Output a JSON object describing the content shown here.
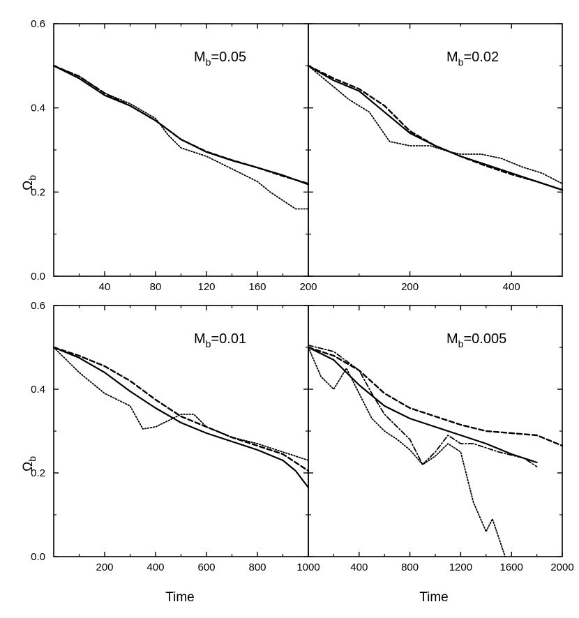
{
  "figure": {
    "xlabel": "Time",
    "ylabel_main": "Ω",
    "ylabel_sub": "b"
  },
  "colors": {
    "ink": "#000000",
    "background": "#ffffff"
  },
  "chart_data": [
    {
      "type": "line",
      "label_main": "M",
      "label_sub": "b",
      "label_value": "=0.05",
      "xlim": [
        0,
        200
      ],
      "ylim": [
        0,
        0.6
      ],
      "xticks": [
        40,
        80,
        120,
        160,
        200
      ],
      "yticks": [
        0.0,
        0.2,
        0.4,
        0.6
      ],
      "series": [
        {
          "name": "solid",
          "style": "solid",
          "x": [
            0,
            20,
            40,
            60,
            80,
            100,
            120,
            140,
            160,
            180,
            200
          ],
          "y": [
            0.5,
            0.47,
            0.43,
            0.405,
            0.37,
            0.325,
            0.295,
            0.275,
            0.258,
            0.24,
            0.218
          ]
        },
        {
          "name": "dashed",
          "style": "dashed",
          "x": [
            0,
            20,
            40,
            60,
            80,
            100,
            120,
            140,
            160,
            180,
            200
          ],
          "y": [
            0.5,
            0.475,
            0.435,
            0.405,
            0.37,
            0.325,
            0.296,
            0.276,
            0.258,
            0.238,
            0.22
          ]
        },
        {
          "name": "dotted",
          "style": "dotted",
          "x": [
            0,
            20,
            40,
            60,
            80,
            90,
            100,
            120,
            140,
            160,
            170,
            180,
            190,
            200
          ],
          "y": [
            0.5,
            0.475,
            0.435,
            0.41,
            0.375,
            0.335,
            0.305,
            0.285,
            0.255,
            0.225,
            0.2,
            0.18,
            0.16,
            0.16
          ]
        }
      ]
    },
    {
      "type": "line",
      "label_main": "M",
      "label_sub": "b",
      "label_value": "=0.02",
      "xlim": [
        0,
        500
      ],
      "ylim": [
        0,
        0.6
      ],
      "xticks": [
        200,
        400
      ],
      "yticks": [
        0.0,
        0.2,
        0.4,
        0.6
      ],
      "series": [
        {
          "name": "solid",
          "style": "solid",
          "x": [
            0,
            50,
            100,
            150,
            200,
            250,
            300,
            350,
            400,
            450,
            500
          ],
          "y": [
            0.5,
            0.465,
            0.44,
            0.39,
            0.34,
            0.31,
            0.285,
            0.265,
            0.245,
            0.225,
            0.205
          ]
        },
        {
          "name": "dashed",
          "style": "dashed",
          "x": [
            0,
            50,
            100,
            150,
            200,
            250,
            300,
            350,
            400,
            450,
            500
          ],
          "y": [
            0.5,
            0.47,
            0.445,
            0.405,
            0.345,
            0.31,
            0.285,
            0.262,
            0.242,
            0.225,
            0.205
          ]
        },
        {
          "name": "dotted",
          "style": "dotted",
          "x": [
            0,
            40,
            80,
            120,
            160,
            200,
            240,
            280,
            300,
            340,
            380,
            420,
            460,
            500
          ],
          "y": [
            0.5,
            0.46,
            0.42,
            0.39,
            0.32,
            0.31,
            0.31,
            0.295,
            0.29,
            0.29,
            0.28,
            0.26,
            0.245,
            0.22
          ]
        }
      ]
    },
    {
      "type": "line",
      "label_main": "M",
      "label_sub": "b",
      "label_value": "=0.01",
      "xlim": [
        0,
        1000
      ],
      "ylim": [
        0,
        0.6
      ],
      "xticks": [
        200,
        400,
        600,
        800,
        1000
      ],
      "yticks": [
        0.0,
        0.2,
        0.4,
        0.6
      ],
      "series": [
        {
          "name": "solid",
          "style": "solid",
          "x": [
            0,
            100,
            200,
            300,
            400,
            500,
            600,
            700,
            800,
            900,
            950,
            1000
          ],
          "y": [
            0.5,
            0.475,
            0.44,
            0.395,
            0.355,
            0.32,
            0.295,
            0.275,
            0.255,
            0.23,
            0.205,
            0.165
          ]
        },
        {
          "name": "dashed",
          "style": "dashed",
          "x": [
            0,
            100,
            200,
            300,
            400,
            500,
            600,
            700,
            800,
            900,
            1000
          ],
          "y": [
            0.5,
            0.48,
            0.455,
            0.42,
            0.375,
            0.335,
            0.31,
            0.285,
            0.265,
            0.245,
            0.205
          ]
        },
        {
          "name": "dotted",
          "style": "dotted",
          "x": [
            0,
            100,
            200,
            300,
            350,
            400,
            450,
            500,
            550,
            600,
            700,
            800,
            900,
            1000
          ],
          "y": [
            0.5,
            0.44,
            0.39,
            0.36,
            0.305,
            0.31,
            0.325,
            0.34,
            0.34,
            0.31,
            0.285,
            0.27,
            0.25,
            0.23
          ]
        }
      ]
    },
    {
      "type": "line",
      "label_main": "M",
      "label_sub": "b",
      "label_value": "=0.005",
      "xlim": [
        0,
        2000
      ],
      "ylim": [
        0,
        0.6
      ],
      "xticks": [
        400,
        800,
        1200,
        1600,
        2000
      ],
      "yticks": [
        0.0,
        0.2,
        0.4,
        0.6
      ],
      "series": [
        {
          "name": "solid",
          "style": "solid",
          "x": [
            0,
            200,
            400,
            600,
            800,
            1000,
            1200,
            1400,
            1600,
            1800
          ],
          "y": [
            0.5,
            0.47,
            0.41,
            0.36,
            0.33,
            0.31,
            0.29,
            0.27,
            0.245,
            0.225
          ]
        },
        {
          "name": "dashed",
          "style": "dashed",
          "x": [
            0,
            200,
            400,
            600,
            800,
            1000,
            1200,
            1400,
            1600,
            1800,
            2000
          ],
          "y": [
            0.5,
            0.48,
            0.445,
            0.39,
            0.355,
            0.335,
            0.315,
            0.3,
            0.295,
            0.29,
            0.265
          ]
        },
        {
          "name": "dotted",
          "style": "dotted",
          "x": [
            0,
            100,
            200,
            300,
            400,
            500,
            600,
            700,
            800,
            900,
            1000,
            1100,
            1200,
            1300,
            1400,
            1450,
            1550
          ],
          "y": [
            0.5,
            0.43,
            0.4,
            0.45,
            0.39,
            0.33,
            0.3,
            0.28,
            0.255,
            0.22,
            0.24,
            0.27,
            0.25,
            0.13,
            0.06,
            0.09,
            0.0
          ]
        },
        {
          "name": "dash-dot",
          "style": "dashdot",
          "x": [
            0,
            200,
            400,
            500,
            600,
            700,
            800,
            900,
            1000,
            1100,
            1200,
            1300,
            1500,
            1700,
            1800
          ],
          "y": [
            0.505,
            0.49,
            0.445,
            0.39,
            0.34,
            0.31,
            0.28,
            0.22,
            0.25,
            0.29,
            0.27,
            0.27,
            0.25,
            0.235,
            0.215
          ]
        }
      ]
    }
  ]
}
